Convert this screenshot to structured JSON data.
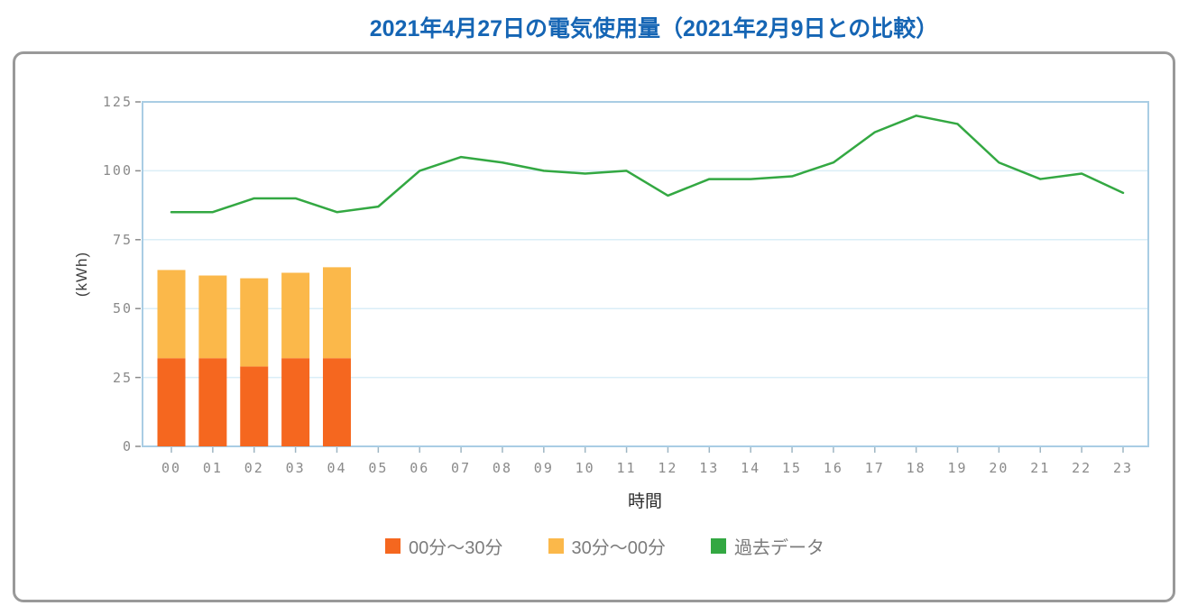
{
  "page": {
    "title": "2021年4月27日の電気使用量（2021年2月9日との比較）"
  },
  "colors": {
    "title_text": "#1565b4",
    "panel_border": "#999999",
    "axis_line": "#a9cde4",
    "gridline": "#daeef7",
    "tick_mark_y": "#8a8a8a",
    "tick_mark_x": "#9fb6c3",
    "tick_label": "#8a8a8a",
    "legend_text": "#7c7c7c",
    "bar_first_half": "#f5671f",
    "bar_second_half": "#fbb84a",
    "past_data_line": "#33a842"
  },
  "chart_data": {
    "type": "combo",
    "title": "2021年4月27日の電気使用量（2021年2月9日との比較）",
    "xlabel": "時間",
    "ylabel": "(kWh)",
    "ylim": [
      0,
      125
    ],
    "y_ticks": [
      0,
      25,
      50,
      75,
      100,
      125
    ],
    "grid": "horizontal",
    "legend_position": "bottom",
    "categories": [
      "00",
      "01",
      "02",
      "03",
      "04",
      "05",
      "06",
      "07",
      "08",
      "09",
      "10",
      "11",
      "12",
      "13",
      "14",
      "15",
      "16",
      "17",
      "18",
      "19",
      "20",
      "21",
      "22",
      "23"
    ],
    "series": [
      {
        "name": "00分～30分",
        "type": "bar",
        "stack": "usage",
        "color": "#f5671f",
        "values": [
          32,
          32,
          29,
          32,
          32
        ]
      },
      {
        "name": "30分～00分",
        "type": "bar",
        "stack": "usage",
        "color": "#fbb84a",
        "values": [
          32,
          30,
          32,
          31,
          33
        ]
      },
      {
        "name": "過去データ",
        "type": "line",
        "color": "#33a842",
        "values": [
          85,
          85,
          90,
          90,
          85,
          87,
          100,
          105,
          103,
          100,
          99,
          100,
          91,
          97,
          97,
          98,
          103,
          114,
          120,
          117,
          103,
          97,
          99,
          92
        ]
      }
    ]
  }
}
